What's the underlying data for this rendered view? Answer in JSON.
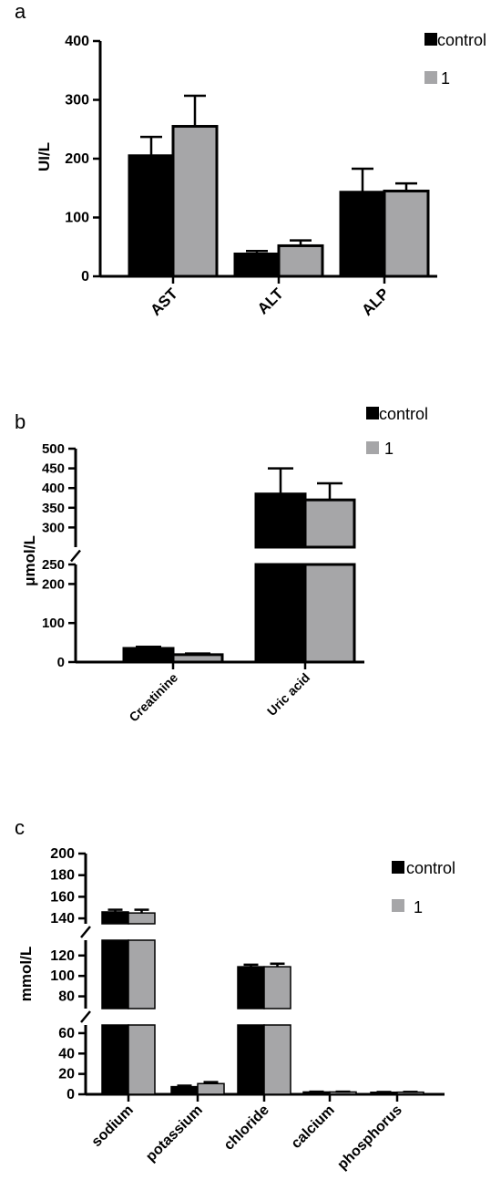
{
  "colors": {
    "control": "#000000",
    "treated": "#a6a6a8",
    "axis": "#000000"
  },
  "chart_data": [
    {
      "panel": "a",
      "type": "bar",
      "title": "",
      "xlabel": "",
      "ylabel": "UI/L",
      "ylim": [
        0,
        400
      ],
      "yticks": [
        0,
        100,
        200,
        300,
        400
      ],
      "ytick_labels": [
        "0",
        "100",
        "200",
        "300",
        "400"
      ],
      "categories": [
        "AST",
        "ALT",
        "ALP"
      ],
      "series": [
        {
          "name": "control",
          "values": [
            205,
            38,
            143
          ],
          "errors": [
            32,
            5,
            40
          ]
        },
        {
          "name": "1",
          "values": [
            255,
            52,
            145
          ],
          "errors": [
            52,
            9,
            13
          ]
        }
      ],
      "legend": "top-right"
    },
    {
      "panel": "b",
      "type": "bar",
      "title": "",
      "xlabel": "",
      "ylabel": "μmol/L",
      "broken_axis": {
        "lower": [
          0,
          250
        ],
        "upper": [
          250,
          500
        ]
      },
      "yticks": [
        0,
        100,
        200,
        250,
        300,
        350,
        400,
        450,
        500
      ],
      "ytick_labels": [
        "0",
        "100",
        "200",
        "250",
        "300",
        "350",
        "400",
        "450",
        "500"
      ],
      "categories": [
        "Creatinine",
        "Uric acid"
      ],
      "series": [
        {
          "name": "control",
          "values": [
            35,
            385
          ],
          "errors": [
            4,
            65
          ]
        },
        {
          "name": "1",
          "values": [
            19,
            370
          ],
          "errors": [
            3,
            42
          ]
        }
      ],
      "legend": "top-right"
    },
    {
      "panel": "c",
      "type": "bar",
      "title": "",
      "xlabel": "",
      "ylabel": "mmol/L",
      "broken_axis": {
        "segments": [
          [
            0,
            68
          ],
          [
            68,
            135
          ],
          [
            135,
            200
          ]
        ]
      },
      "yticks": [
        0,
        20,
        40,
        60,
        80,
        100,
        120,
        140,
        160,
        180,
        200
      ],
      "ytick_labels": [
        "0",
        "20",
        "40",
        "60",
        "80",
        "100",
        "120",
        "140",
        "160",
        "180",
        "200"
      ],
      "categories": [
        "sodium",
        "potassium",
        "chloride",
        "calcium",
        "phosphorus"
      ],
      "series": [
        {
          "name": "control",
          "values": [
            146,
            7.5,
            109,
            2.3,
            2.0
          ],
          "errors": [
            2,
            1,
            2,
            0.3,
            0.3
          ]
        },
        {
          "name": "1",
          "values": [
            145,
            10.5,
            109,
            2.3,
            2.1
          ],
          "errors": [
            3,
            1.5,
            3,
            0.3,
            0.3
          ]
        }
      ],
      "legend": "top-right"
    }
  ]
}
